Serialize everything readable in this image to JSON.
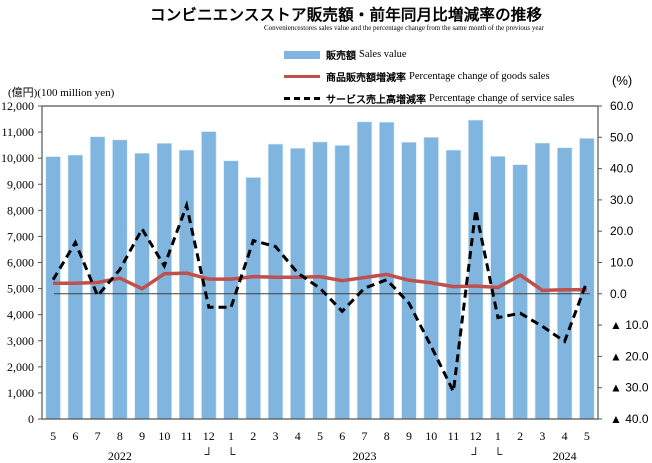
{
  "title": "コンビニエンスストア販売額・前年同月比増減率の推移",
  "subtitle": "Conveniencestores sales value and the percentage change from the same month of the previous year",
  "legend": [
    {
      "jp": "販売額",
      "en": "Sales value",
      "color": "#7fb5de",
      "style": "bar"
    },
    {
      "jp": "商品販売額増減率",
      "en": "Percentage change of goods sales",
      "color": "#c0504d",
      "style": "solid"
    },
    {
      "jp": "サービス売上高増減率",
      "en": "Percentage change of service sales",
      "color": "#000000",
      "style": "dashed"
    }
  ],
  "left_axis_unit": "(億円)(100 million yen)",
  "right_axis_unit": "(%)",
  "year_separator_marks": [
    "┘",
    "└"
  ],
  "chart_data": {
    "type": "bar+line",
    "title": "コンビニエンスストア販売額・前年同月比増減率の推移",
    "categories": [
      "5",
      "6",
      "7",
      "8",
      "9",
      "10",
      "11",
      "12",
      "1",
      "2",
      "3",
      "4",
      "5",
      "6",
      "7",
      "8",
      "9",
      "10",
      "11",
      "12",
      "1",
      "2",
      "3",
      "4",
      "5"
    ],
    "year_labels": [
      {
        "label": "2022",
        "at_index": 3
      },
      {
        "label": "2023",
        "at_index": 14
      },
      {
        "label": "2024",
        "at_index": 23
      }
    ],
    "year_breaks_after_index": [
      7,
      19
    ],
    "left_axis": {
      "label": "(億円)(100 million yen)",
      "ylim": [
        0,
        12000
      ],
      "ticks": [
        0,
        1000,
        2000,
        3000,
        4000,
        5000,
        6000,
        7000,
        8000,
        9000,
        10000,
        11000,
        12000
      ],
      "tick_labels": [
        "0",
        "1,000",
        "2,000",
        "3,000",
        "4,000",
        "5,000",
        "6,000",
        "7,000",
        "8,000",
        "9,000",
        "10,000",
        "11,000",
        "12,000"
      ]
    },
    "right_axis": {
      "label": "(%)",
      "ylim": [
        -40,
        60
      ],
      "ticks": [
        60,
        50,
        40,
        30,
        20,
        10,
        0,
        -10,
        -20,
        -30,
        -40
      ],
      "tick_labels": [
        "60.0",
        "50.0",
        "40.0",
        "30.0",
        "20.0",
        "10.0",
        "0.0",
        "▲ 10.0",
        "▲ 20.0",
        "▲ 30.0",
        "▲ 40.0"
      ]
    },
    "series": [
      {
        "name": "販売額 Sales value",
        "type": "bar",
        "axis": "left",
        "color": "#7fb5de",
        "values": [
          10060,
          10120,
          10820,
          10700,
          10190,
          10570,
          10310,
          11020,
          9900,
          9260,
          10540,
          10380,
          10620,
          10490,
          11390,
          11380,
          10610,
          10800,
          10310,
          11460,
          10070,
          9750,
          10580,
          10400,
          10760
        ]
      },
      {
        "name": "商品販売額増減率 Percentage change of goods sales",
        "type": "line",
        "axis": "right",
        "color": "#c0504d",
        "values": [
          3.4,
          3.4,
          3.6,
          5.0,
          1.6,
          6.4,
          6.6,
          4.7,
          4.7,
          5.5,
          5.3,
          5.3,
          5.5,
          4.2,
          5.2,
          6.2,
          4.3,
          3.5,
          2.3,
          2.5,
          2.0,
          6.0,
          1.1,
          1.3,
          1.3
        ]
      },
      {
        "name": "サービス売上高増減率 Percentage change of service sales",
        "type": "line-dashed",
        "axis": "right",
        "color": "#000000",
        "values": [
          4.5,
          16.4,
          -0.6,
          7.7,
          20.7,
          8.9,
          28.2,
          -4.3,
          -4.3,
          17.0,
          15.1,
          6.6,
          1.8,
          -5.6,
          1.8,
          4.5,
          -3.0,
          -16.8,
          -31.2,
          26.8,
          -7.6,
          -6.2,
          -10.4,
          -15.2,
          3.9
        ]
      }
    ],
    "zero_reference_line": 0,
    "grid": false,
    "legend_position": "top-right"
  }
}
